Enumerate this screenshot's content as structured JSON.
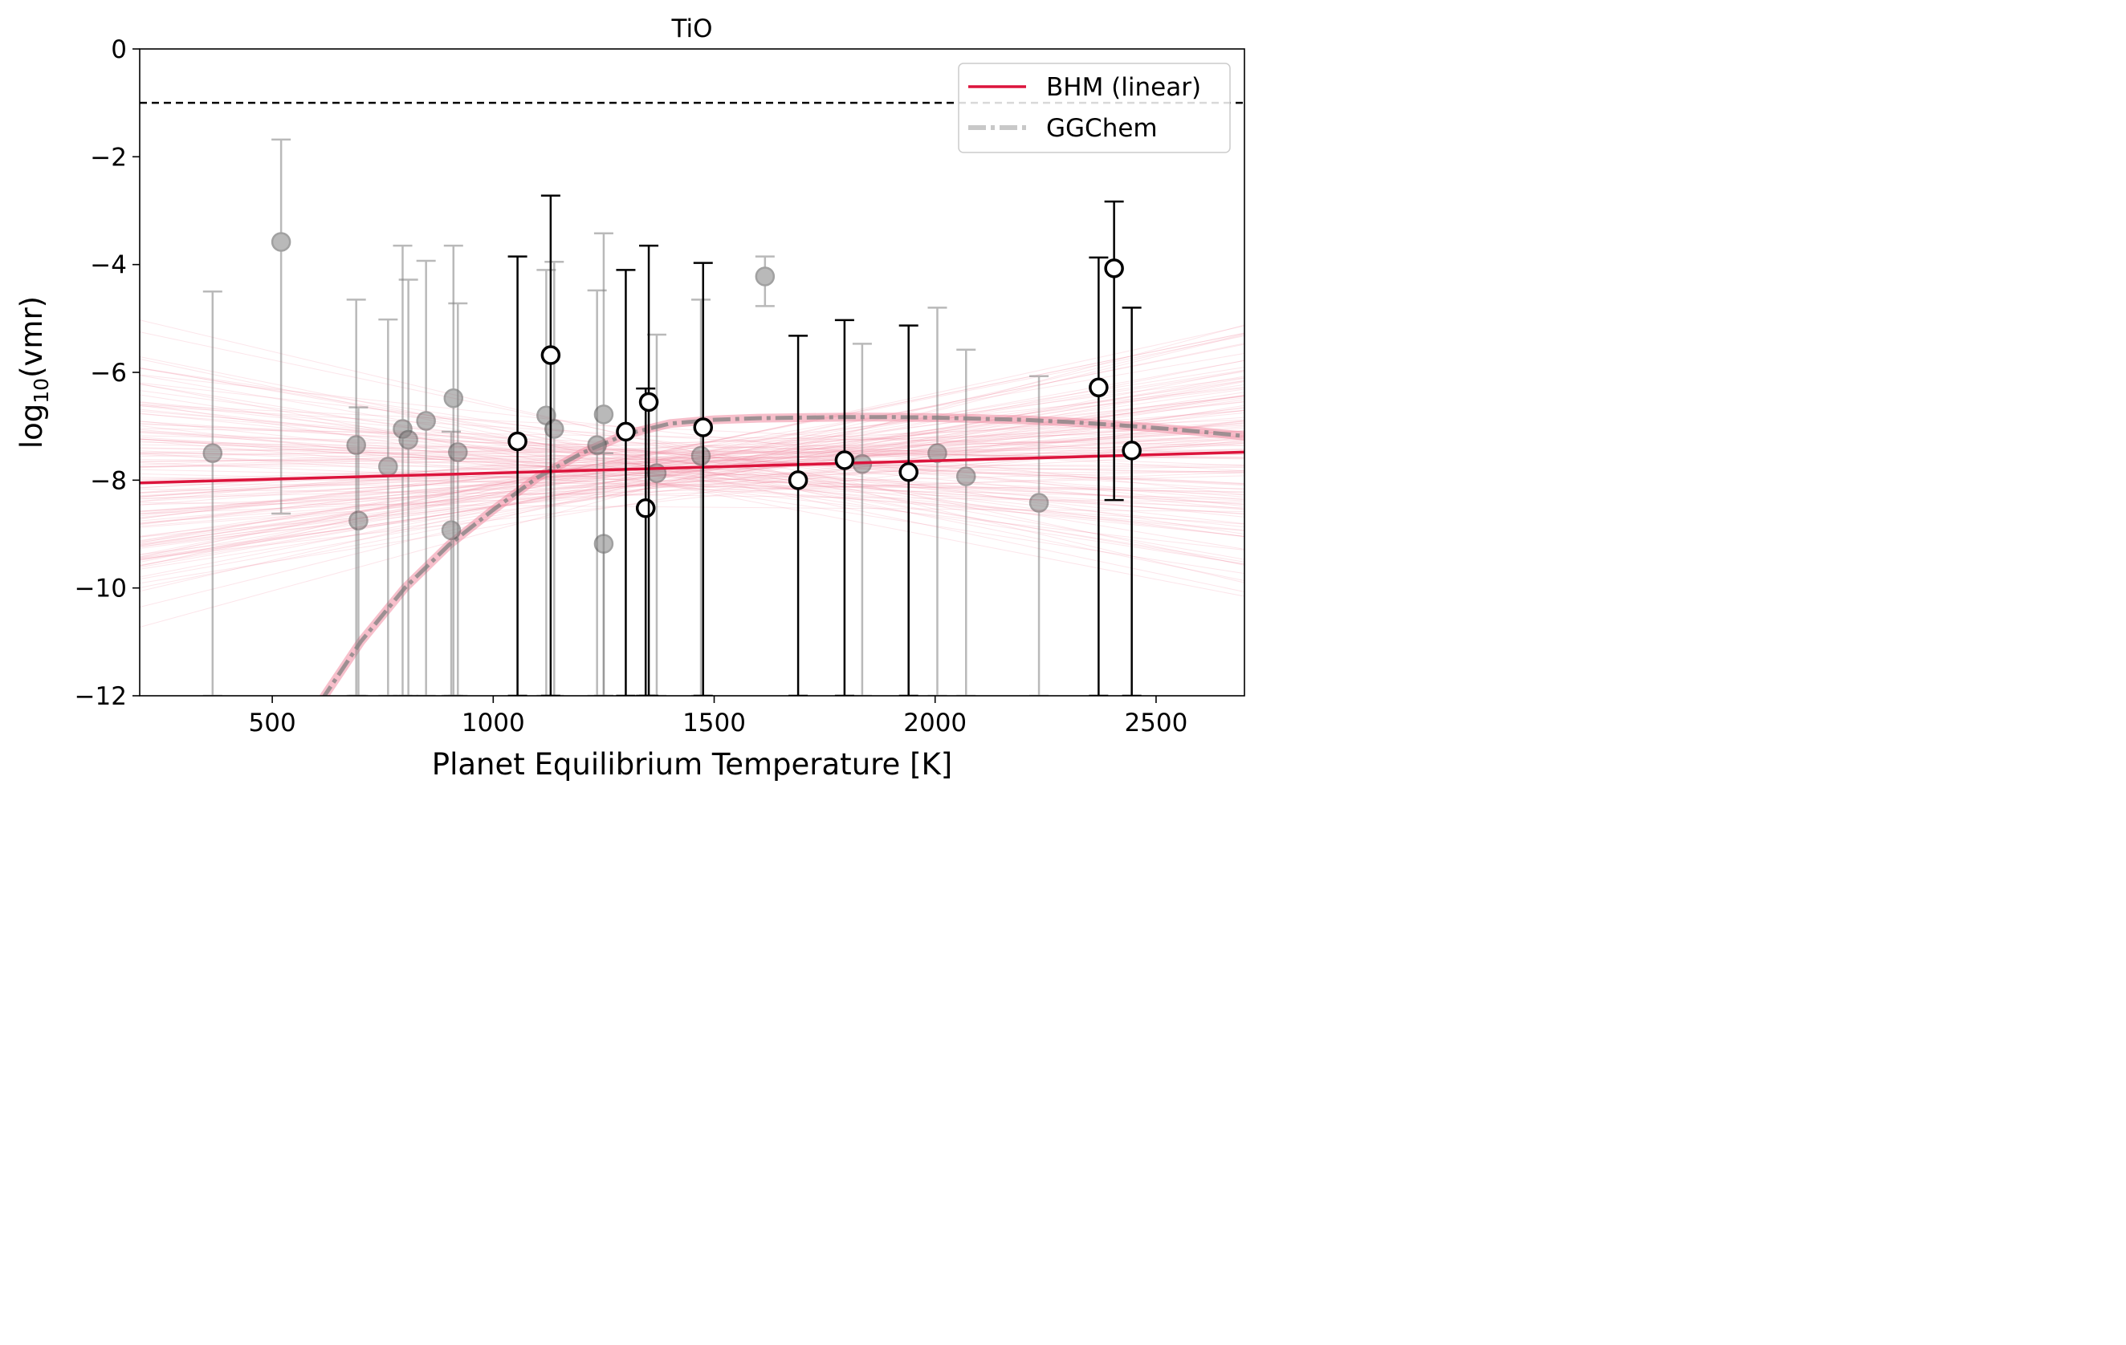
{
  "chart_data": {
    "type": "scatter",
    "title": "TiO",
    "xlabel": "Planet Equilibrium Temperature [K]",
    "ylabel_base": "log",
    "ylabel_sub": "10",
    "ylabel_rest": "(vmr)",
    "xlim": [
      200,
      2700
    ],
    "ylim": [
      -12,
      0
    ],
    "xticks": [
      500,
      1000,
      1500,
      2000,
      2500
    ],
    "xtick_labels": [
      "500",
      "1000",
      "1500",
      "2000",
      "2500"
    ],
    "yticks": [
      0,
      -2,
      -4,
      -6,
      -8,
      -10,
      -12
    ],
    "ytick_labels": [
      "0",
      "−2",
      "−4",
      "−6",
      "−8",
      "−10",
      "−12"
    ],
    "grid": false,
    "legend_position": "top-right",
    "legend": [
      {
        "label": "BHM (linear)",
        "color": "#dc143c",
        "style": "solid"
      },
      {
        "label": "GGChem",
        "color": "#c8c8c8",
        "style": "dash-dot"
      }
    ],
    "colors": {
      "bhm": "#dc143c",
      "bhm_samples": "#f08aa0",
      "ggchem": "#808080",
      "upper_limit_line": "#000000",
      "detections_face": "#ffffff",
      "detections_edge": "#000000",
      "non_detections": "#808080"
    },
    "upper_limit_y": -1,
    "bhm_line": {
      "x": [
        200,
        2700
      ],
      "y": [
        -8.05,
        -7.48
      ]
    },
    "ggchem_curve": {
      "x": [
        610,
        700,
        800,
        900,
        1000,
        1100,
        1200,
        1300,
        1400,
        1500,
        1600,
        1700,
        1800,
        1900,
        2000,
        2100,
        2200,
        2300,
        2400,
        2500,
        2600,
        2700
      ],
      "y": [
        -12.1,
        -11.0,
        -10.0,
        -9.2,
        -8.55,
        -7.95,
        -7.5,
        -7.15,
        -6.95,
        -6.88,
        -6.85,
        -6.84,
        -6.83,
        -6.83,
        -6.84,
        -6.86,
        -6.88,
        -6.92,
        -6.97,
        -7.03,
        -7.1,
        -7.18
      ]
    },
    "detections": [
      {
        "x": 1055,
        "y": -7.28,
        "lo": -12,
        "hi": -3.85
      },
      {
        "x": 1130,
        "y": -5.68,
        "lo": -12,
        "hi": -2.72
      },
      {
        "x": 1300,
        "y": -7.1,
        "lo": -12,
        "hi": -4.1
      },
      {
        "x": 1345,
        "y": -8.52,
        "lo": -12,
        "hi": -6.3
      },
      {
        "x": 1352,
        "y": -6.55,
        "lo": -12,
        "hi": -3.65
      },
      {
        "x": 1475,
        "y": -7.02,
        "lo": -12,
        "hi": -3.97
      },
      {
        "x": 1690,
        "y": -8.0,
        "lo": -12,
        "hi": -5.32
      },
      {
        "x": 1795,
        "y": -7.63,
        "lo": -12,
        "hi": -5.03
      },
      {
        "x": 1940,
        "y": -7.85,
        "lo": -12,
        "hi": -5.13
      },
      {
        "x": 2370,
        "y": -6.28,
        "lo": -12,
        "hi": -3.87
      },
      {
        "x": 2405,
        "y": -4.07,
        "lo": -8.37,
        "hi": -2.83
      },
      {
        "x": 2445,
        "y": -7.45,
        "lo": -12,
        "hi": -4.8
      }
    ],
    "non_detections": [
      {
        "x": 365,
        "y": -7.5,
        "lo": -12,
        "hi": -4.5
      },
      {
        "x": 520,
        "y": -3.58,
        "lo": -8.62,
        "hi": -1.68
      },
      {
        "x": 690,
        "y": -7.35,
        "lo": -12,
        "hi": -4.65
      },
      {
        "x": 695,
        "y": -8.75,
        "lo": -12,
        "hi": -6.65
      },
      {
        "x": 762,
        "y": -7.75,
        "lo": -12,
        "hi": -5.02
      },
      {
        "x": 795,
        "y": -7.05,
        "lo": -12,
        "hi": -3.65
      },
      {
        "x": 808,
        "y": -7.25,
        "lo": -12,
        "hi": -4.28
      },
      {
        "x": 848,
        "y": -6.9,
        "lo": -12,
        "hi": -3.93
      },
      {
        "x": 905,
        "y": -8.93,
        "lo": -12,
        "hi": -7.1
      },
      {
        "x": 910,
        "y": -6.48,
        "lo": -12,
        "hi": -3.65
      },
      {
        "x": 920,
        "y": -7.48,
        "lo": -12,
        "hi": -4.72
      },
      {
        "x": 1120,
        "y": -6.8,
        "lo": -12,
        "hi": -4.1
      },
      {
        "x": 1138,
        "y": -7.05,
        "lo": -12,
        "hi": -3.95
      },
      {
        "x": 1235,
        "y": -7.35,
        "lo": -12,
        "hi": -4.48
      },
      {
        "x": 1250,
        "y": -6.78,
        "lo": -12,
        "hi": -3.42
      },
      {
        "x": 1250,
        "y": -9.18,
        "lo": -12,
        "hi": -7.5
      },
      {
        "x": 1370,
        "y": -7.87,
        "lo": -12,
        "hi": -5.3
      },
      {
        "x": 1470,
        "y": -7.55,
        "lo": -12,
        "hi": -4.65
      },
      {
        "x": 1615,
        "y": -4.22,
        "lo": -4.77,
        "hi": -3.85
      },
      {
        "x": 1835,
        "y": -7.7,
        "lo": -12,
        "hi": -5.47
      },
      {
        "x": 2005,
        "y": -7.5,
        "lo": -12,
        "hi": -4.8
      },
      {
        "x": 2070,
        "y": -7.93,
        "lo": -12,
        "hi": -5.58
      },
      {
        "x": 2235,
        "y": -8.42,
        "lo": -12,
        "hi": -6.07
      }
    ]
  }
}
